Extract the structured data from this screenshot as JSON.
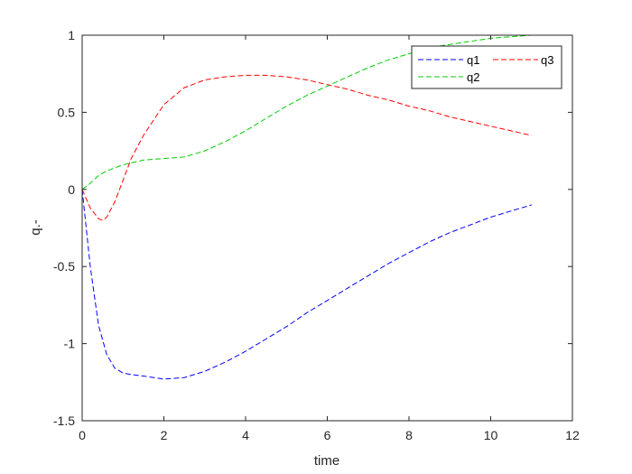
{
  "chart_data": {
    "type": "line",
    "xlabel": "time",
    "ylabel": "q.-",
    "xlim": [
      0,
      12
    ],
    "ylim": [
      -1.5,
      1
    ],
    "x_ticks": [
      0,
      2,
      4,
      6,
      8,
      10,
      12
    ],
    "y_ticks": [
      -1.5,
      -1,
      -0.5,
      0,
      0.5,
      1
    ],
    "x_tick_labels": [
      "0",
      "2",
      "4",
      "6",
      "8",
      "10",
      "12"
    ],
    "y_tick_labels": [
      "-1.5",
      "-1",
      "-0.5",
      "0",
      "0.5",
      "1"
    ],
    "grid": false,
    "legend_position": "top-right",
    "series": [
      {
        "name": "q1",
        "color": "#0000ff",
        "style": "dashed",
        "x": [
          0,
          0.2,
          0.4,
          0.6,
          0.8,
          1.0,
          1.2,
          1.5,
          2.0,
          2.5,
          3.0,
          3.5,
          4.0,
          4.5,
          5.0,
          5.5,
          6.0,
          6.5,
          7.0,
          7.5,
          8.0,
          8.5,
          9.0,
          9.5,
          10.0,
          10.5,
          11.0
        ],
        "y": [
          0,
          -0.5,
          -0.88,
          -1.07,
          -1.16,
          -1.19,
          -1.2,
          -1.21,
          -1.23,
          -1.22,
          -1.18,
          -1.12,
          -1.05,
          -0.97,
          -0.89,
          -0.8,
          -0.72,
          -0.64,
          -0.56,
          -0.48,
          -0.41,
          -0.34,
          -0.28,
          -0.23,
          -0.18,
          -0.14,
          -0.1
        ]
      },
      {
        "name": "q2",
        "color": "#00cc00",
        "style": "dashed",
        "x": [
          0,
          0.2,
          0.4,
          0.6,
          0.8,
          1.0,
          1.5,
          2.0,
          2.5,
          3.0,
          3.5,
          4.0,
          4.5,
          5.0,
          5.5,
          6.0,
          6.5,
          7.0,
          7.5,
          8.0,
          8.5,
          9.0,
          9.5,
          10.0,
          10.5,
          11.0
        ],
        "y": [
          0,
          0.04,
          0.09,
          0.12,
          0.14,
          0.16,
          0.19,
          0.2,
          0.21,
          0.25,
          0.31,
          0.38,
          0.46,
          0.54,
          0.61,
          0.67,
          0.73,
          0.79,
          0.84,
          0.88,
          0.92,
          0.94,
          0.96,
          0.98,
          0.99,
          1.0
        ]
      },
      {
        "name": "q3",
        "color": "#ff0000",
        "style": "dashed",
        "x": [
          0,
          0.2,
          0.4,
          0.5,
          0.6,
          0.8,
          1.0,
          1.2,
          1.5,
          2.0,
          2.5,
          3.0,
          3.5,
          4.0,
          4.5,
          5.0,
          5.5,
          6.0,
          6.5,
          7.0,
          7.5,
          8.0,
          8.5,
          9.0,
          9.5,
          10.0,
          10.5,
          11.0
        ],
        "y": [
          0,
          -0.12,
          -0.19,
          -0.2,
          -0.18,
          -0.08,
          0.06,
          0.2,
          0.35,
          0.55,
          0.66,
          0.71,
          0.73,
          0.74,
          0.74,
          0.73,
          0.71,
          0.68,
          0.65,
          0.61,
          0.58,
          0.54,
          0.51,
          0.47,
          0.44,
          0.41,
          0.38,
          0.35
        ]
      }
    ],
    "legend_order": [
      "q1",
      "q3",
      "q2"
    ],
    "colors": {
      "axis": "#262626",
      "background": "#ffffff"
    }
  }
}
